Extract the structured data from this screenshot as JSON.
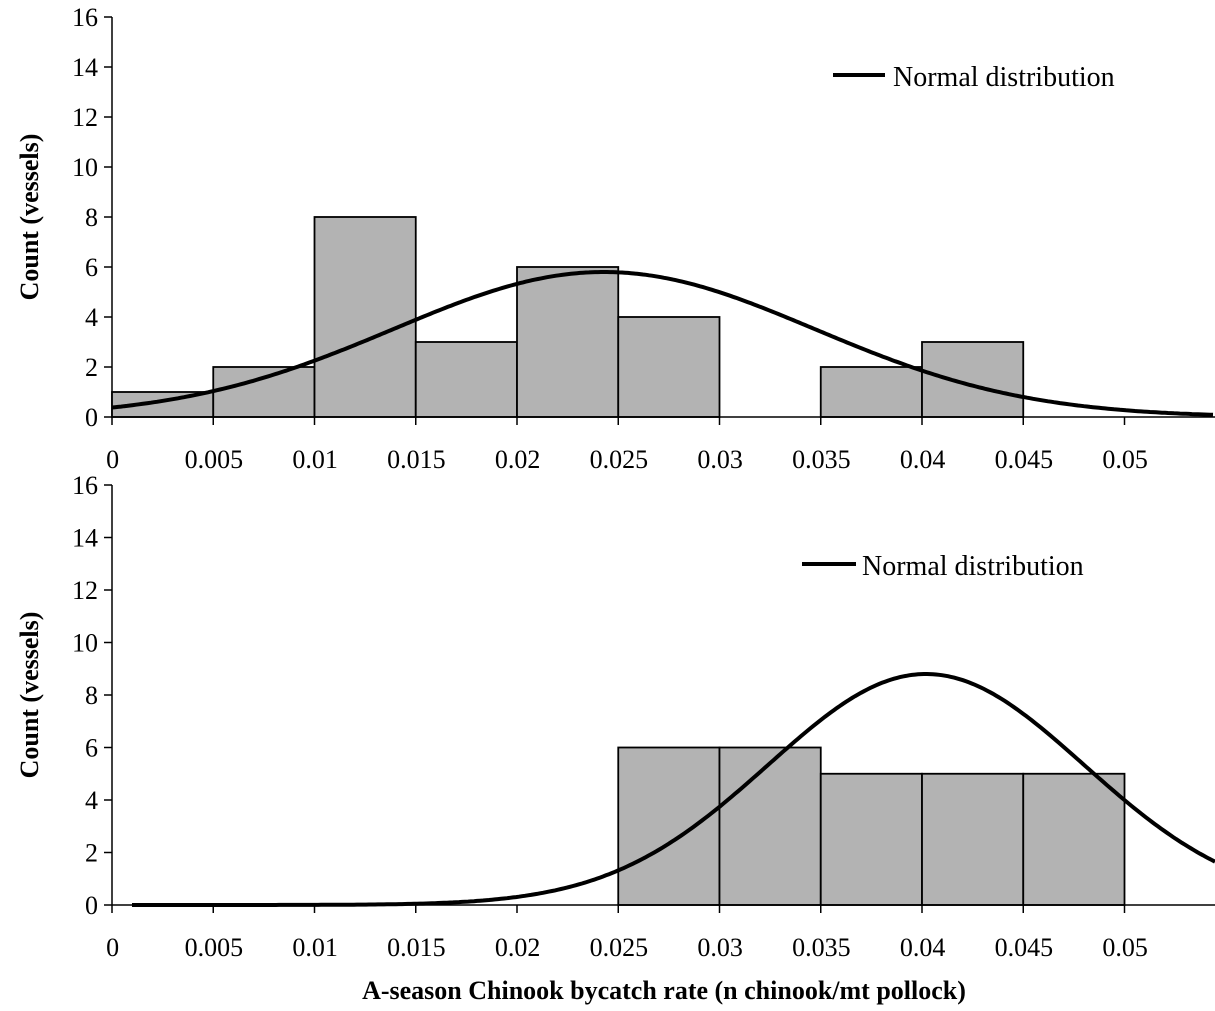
{
  "chart_data": [
    {
      "type": "bar",
      "ylabel": "Count (vessels)",
      "ylim": [
        0,
        16
      ],
      "y_ticks": [
        "0",
        "2",
        "4",
        "6",
        "8",
        "10",
        "12",
        "14",
        "16"
      ],
      "x_ticks": [
        "0",
        "0.005",
        "0.01",
        "0.015",
        "0.02",
        "0.025",
        "0.03",
        "0.035",
        "0.04",
        "0.045",
        "0.05"
      ],
      "bins": [
        0,
        0.005,
        0.01,
        0.015,
        0.02,
        0.025,
        0.03,
        0.035,
        0.04,
        0.045,
        0.05
      ],
      "values": [
        1,
        2,
        8,
        3,
        6,
        4,
        0,
        2,
        3,
        0,
        0
      ],
      "bar_color": "#b3b3b3",
      "series": [
        {
          "name": "Normal distribution",
          "type": "line",
          "mean": 0.0218,
          "sd": 0.0104,
          "peak": 5.8
        }
      ],
      "legend": "top-right"
    },
    {
      "type": "bar",
      "ylabel": "Count (vessels)",
      "xlabel": "A-season Chinook bycatch rate (n chinook/mt pollock)",
      "ylim": [
        0,
        16
      ],
      "y_ticks": [
        "0",
        "2",
        "4",
        "6",
        "8",
        "10",
        "12",
        "14",
        "16"
      ],
      "x_ticks": [
        "0",
        "0.005",
        "0.01",
        "0.015",
        "0.02",
        "0.025",
        "0.03",
        "0.035",
        "0.04",
        "0.045",
        "0.05"
      ],
      "bins": [
        0,
        0.005,
        0.01,
        0.015,
        0.02,
        0.025,
        0.03,
        0.035,
        0.04,
        0.045,
        0.05
      ],
      "values": [
        0,
        0,
        0,
        0,
        0,
        6,
        6,
        5,
        5,
        5,
        0
      ],
      "bar_color": "#b3b3b3",
      "series": [
        {
          "name": "Normal distribution",
          "type": "line",
          "mean": 0.0377,
          "sd": 0.0078,
          "peak": 8.8
        }
      ],
      "legend": "top-right"
    }
  ]
}
